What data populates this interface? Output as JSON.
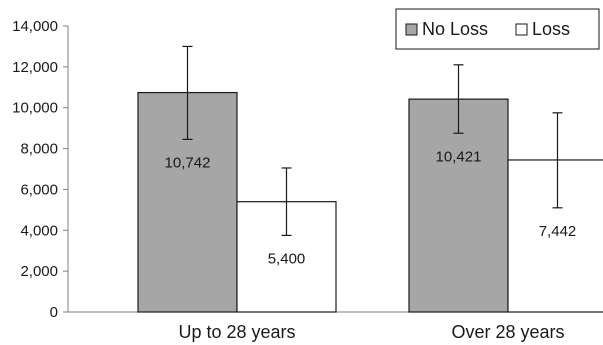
{
  "chart_data": {
    "type": "bar",
    "title": "",
    "xlabel": "",
    "ylabel": "",
    "ylim": [
      0,
      14000
    ],
    "y_ticks": [
      0,
      2000,
      4000,
      6000,
      8000,
      10000,
      12000,
      14000
    ],
    "y_tick_labels": [
      "0",
      "2,000",
      "4,000",
      "6,000",
      "8,000",
      "10,000",
      "12,000",
      "14,000"
    ],
    "grid": false,
    "legend_position": "top-right",
    "categories": [
      "Up to 28 years",
      "Over 28 years"
    ],
    "series": [
      {
        "name": "No Loss",
        "color": "#a6a6a6",
        "values": [
          10742,
          10421
        ],
        "value_labels": [
          "10,742",
          "10,421"
        ],
        "error_low": [
          8450,
          8750
        ],
        "error_high": [
          13000,
          12100
        ]
      },
      {
        "name": "Loss",
        "color": "#ffffff",
        "values": [
          5400,
          7442
        ],
        "value_labels": [
          "5,400",
          "7,442"
        ],
        "error_low": [
          3750,
          5100
        ],
        "error_high": [
          7050,
          9750
        ]
      }
    ]
  }
}
